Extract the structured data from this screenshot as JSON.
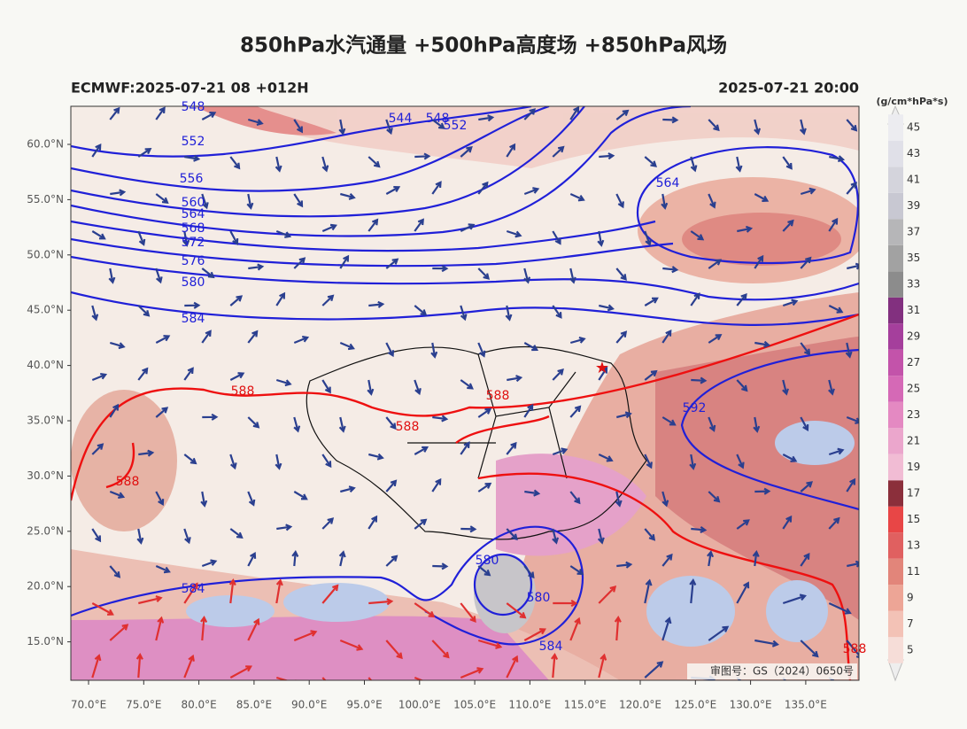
{
  "title": "850hPa水汽通量 +500hPa高度场 +850hPa风场",
  "model_run": "ECMWF:2025-07-21 08 +012H",
  "valid_time": "2025-07-21 20:00",
  "colorbar": {
    "unit": "(g/cm*hPa*s)",
    "levels": [
      5,
      7,
      9,
      11,
      13,
      15,
      17,
      19,
      21,
      23,
      25,
      27,
      29,
      31,
      33,
      35,
      37,
      39,
      41,
      43,
      45
    ],
    "colors": [
      "#f6ddd8",
      "#f3c2b6",
      "#eda596",
      "#e2857a",
      "#e06060",
      "#e84646",
      "#8b2f3b",
      "#f1bcd4",
      "#eba6cc",
      "#e489c2",
      "#d569b6",
      "#c353aa",
      "#a53f9c",
      "#82307f",
      "#8c8c8c",
      "#a2a2a2",
      "#b6b6b8",
      "#c8c8d2",
      "#d4d4dc",
      "#e0e0e8",
      "#ececf0"
    ]
  },
  "lat_labels": [
    "60.0°N",
    "55.0°N",
    "50.0°N",
    "45.0°N",
    "40.0°N",
    "35.0°N",
    "30.0°N",
    "25.0°N",
    "20.0°N",
    "15.0°N"
  ],
  "lon_labels": [
    "70.0°E",
    "75.0°E",
    "80.0°E",
    "85.0°E",
    "90.0°E",
    "95.0°E",
    "100.0°E",
    "105.0°E",
    "110.0°E",
    "115.0°E",
    "120.0°E",
    "125.0°E",
    "130.0°E",
    "135.0°E"
  ],
  "height_contour_labels": [
    548,
    544,
    548,
    552,
    552,
    556,
    560,
    564,
    568,
    572,
    576,
    580,
    584,
    564,
    592,
    584,
    580,
    580,
    584
  ],
  "ridge_contour_labels": [
    588,
    588,
    588,
    588,
    588
  ],
  "credit": "审图号：GS（2024）0650号"
}
